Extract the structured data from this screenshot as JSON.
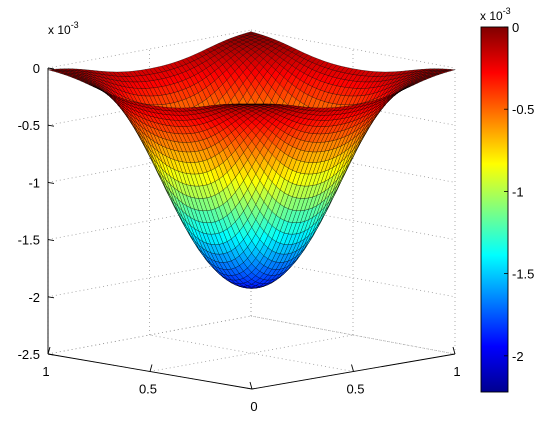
{
  "chart_data": {
    "type": "surface",
    "colormap": "jet",
    "grid": true,
    "x_ticks": [
      "0",
      "0.5",
      "1"
    ],
    "y_ticks": [
      "0",
      "0.5",
      "1"
    ],
    "z_ticks": [
      "-2.5",
      "-2",
      "-1.5",
      "-1",
      "-0.5",
      "0"
    ],
    "z_exponent_base": "x 10",
    "z_exponent_power": "-3",
    "xlim": [
      0,
      1
    ],
    "ylim": [
      0,
      1
    ],
    "zlim": [
      -0.0025,
      0
    ],
    "z_min": -0.00222,
    "z_max": 0,
    "surface_description_values": {
      "edge_value": 0,
      "center_value": -0.00222,
      "secondary_minima_near": [
        [
          0.2,
          0.5
        ],
        [
          0.8,
          0.5
        ]
      ]
    },
    "colorbar": {
      "ticks": [
        "0",
        "-0.5",
        "-1",
        "-1.5",
        "-2"
      ],
      "exponent_base": "x 10",
      "exponent_power": "-3",
      "range": [
        -0.00222,
        0
      ]
    }
  }
}
